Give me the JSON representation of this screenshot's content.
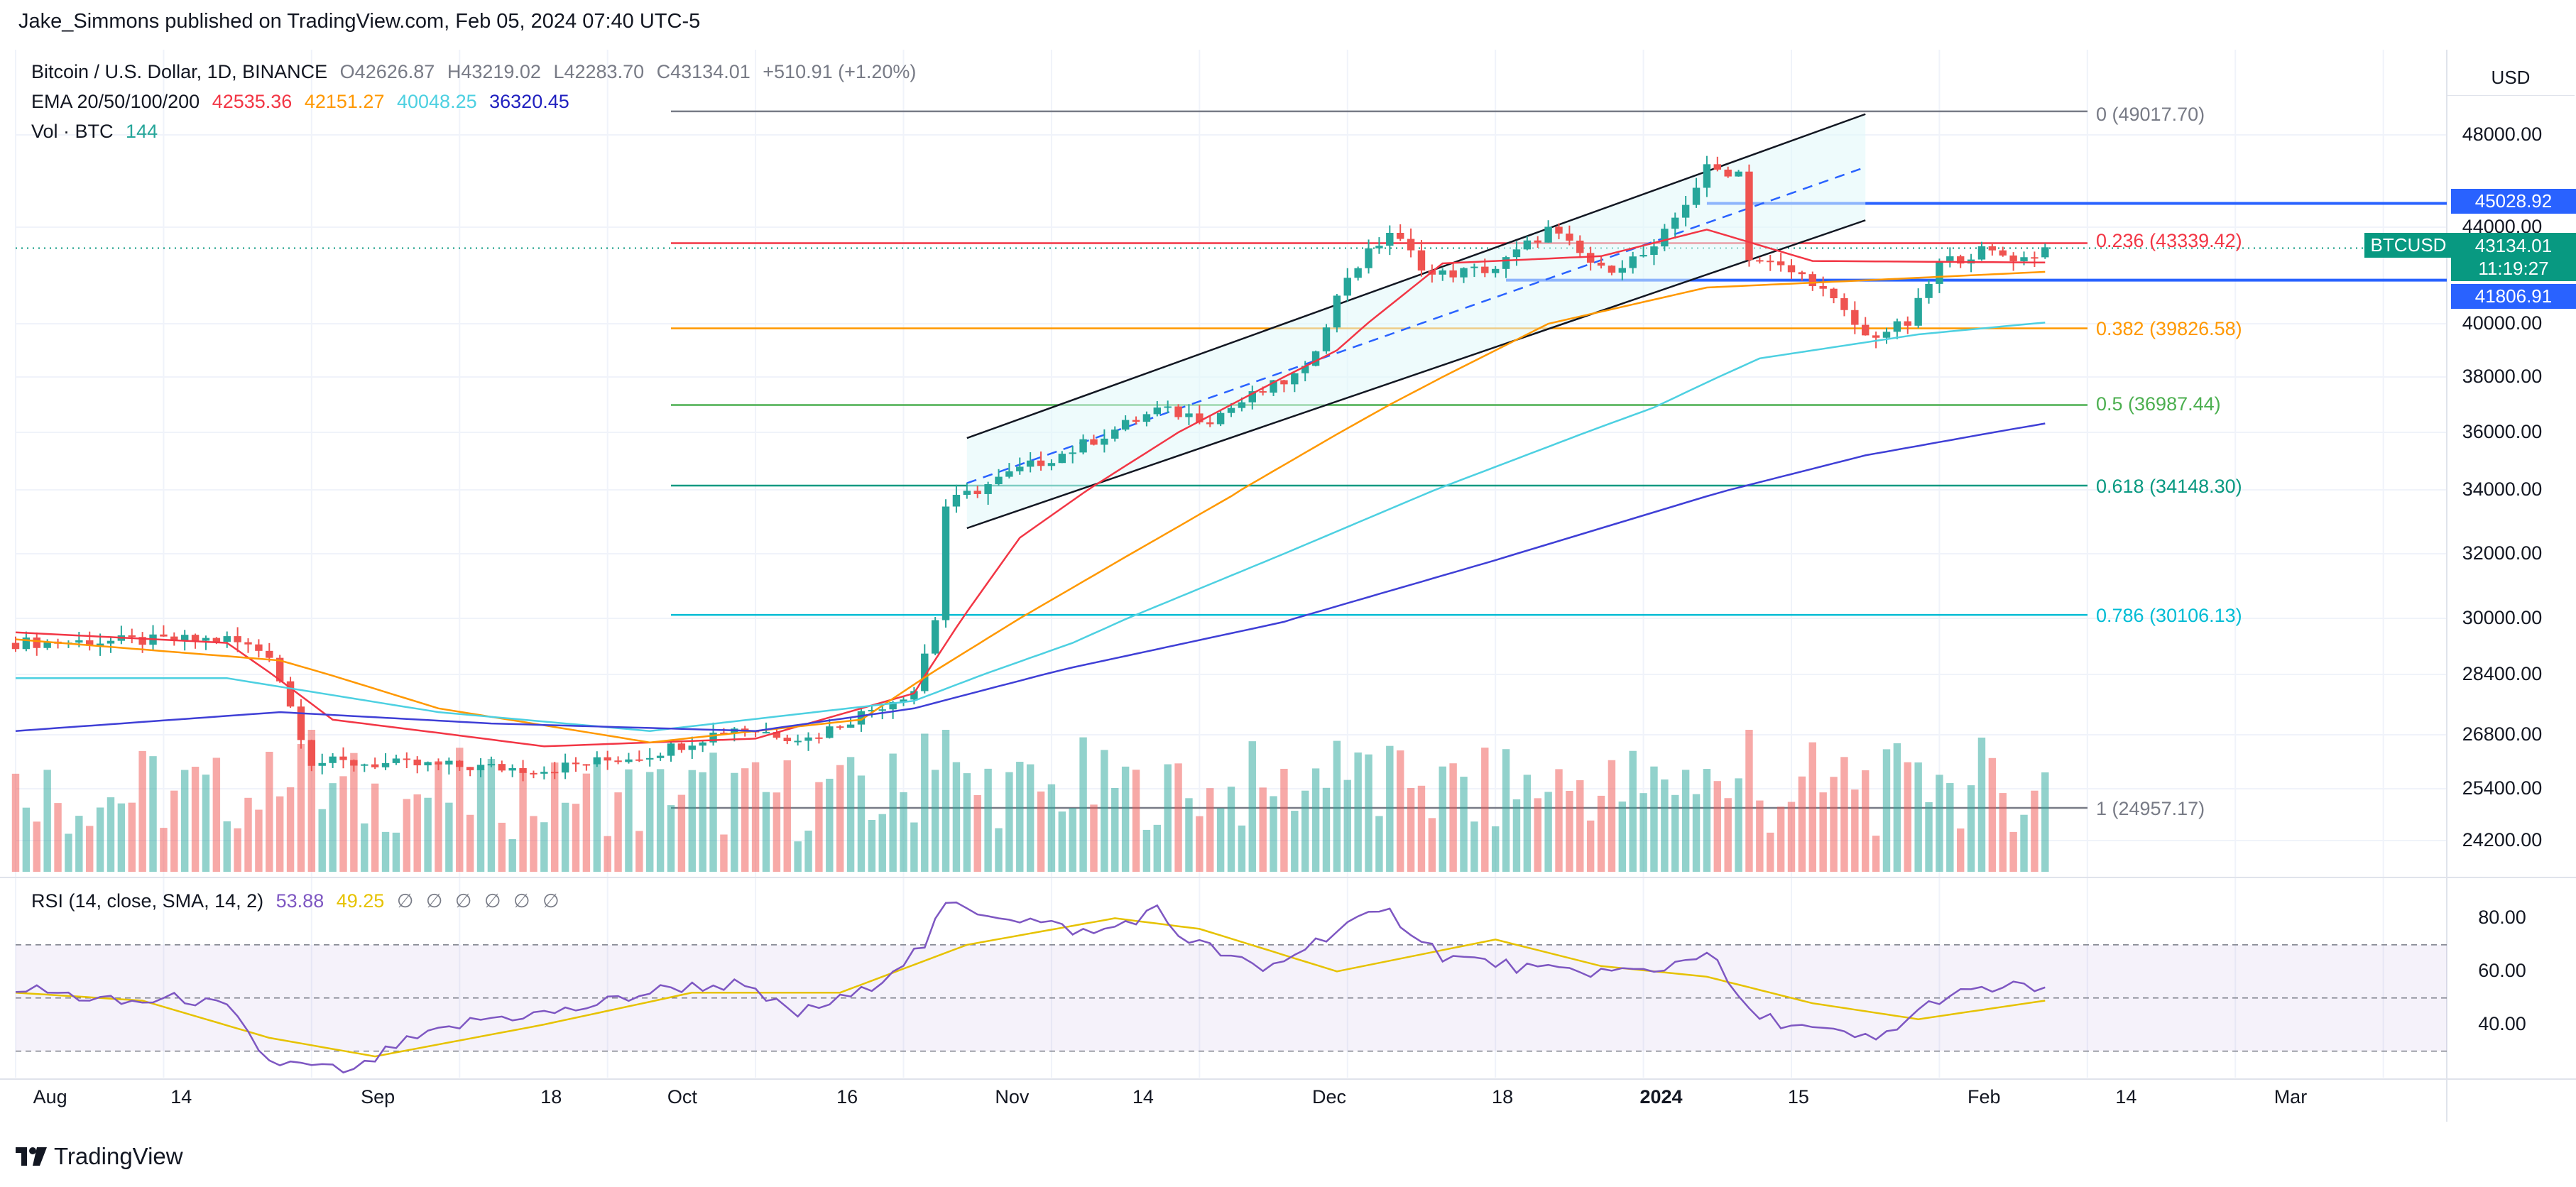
{
  "header": {
    "author_line": "Jake_Simmons published on TradingView.com, Feb 05, 2024 07:40 UTC-5"
  },
  "legend": {
    "symbol": "Bitcoin / U.S. Dollar, 1D, BINANCE",
    "o_label": "O",
    "o": "42626.87",
    "h_label": "H",
    "h": "43219.02",
    "l_label": "L",
    "l": "42283.70",
    "c_label": "C",
    "c": "43134.01",
    "change": "+510.91 (+1.20%)",
    "ema_label": "EMA 20/50/100/200",
    "ema20": "42535.36",
    "ema50": "42151.27",
    "ema100": "40048.25",
    "ema200": "36320.45",
    "vol_label": "Vol · BTC",
    "vol": "144",
    "rsi_label": "RSI (14, close, SMA, 14, 2)",
    "rsi": "53.88",
    "rsi_sma": "49.25",
    "rsi_empty": [
      "∅",
      "∅",
      "∅",
      "∅",
      "∅",
      "∅"
    ]
  },
  "currency": "USD",
  "price_scale": [
    "48000.00",
    "44000.00",
    "40000.00",
    "38000.00",
    "36000.00",
    "34000.00",
    "32000.00",
    "30000.00",
    "28400.00",
    "26800.00",
    "25400.00",
    "24200.00"
  ],
  "rsi_scale": [
    "80.00",
    "60.00",
    "40.00"
  ],
  "badges": {
    "resistance": "45028.92",
    "support": "41806.91",
    "symbol": "BTCUSD",
    "last_price": "43134.01",
    "countdown": "11:19:27"
  },
  "fib_levels": [
    {
      "label": "0 (49017.70)",
      "color": "#787b86"
    },
    {
      "label": "0.236 (43339.42)",
      "color": "#f23645"
    },
    {
      "label": "0.382 (39826.58)",
      "color": "#ff9800"
    },
    {
      "label": "0.5 (36987.44)",
      "color": "#4caf50"
    },
    {
      "label": "0.618 (34148.30)",
      "color": "#089981"
    },
    {
      "label": "0.786 (30106.13)",
      "color": "#00bcd4"
    },
    {
      "label": "1 (24957.17)",
      "color": "#787b86"
    }
  ],
  "time_axis": [
    "Aug",
    "14",
    "Sep",
    "18",
    "Oct",
    "16",
    "Nov",
    "14",
    "Dec",
    "18",
    "2024",
    "15",
    "Feb",
    "14",
    "Mar"
  ],
  "brand": "TradingView",
  "colors": {
    "up": "#26a69a",
    "down": "#ef5350",
    "ema20": "#f23645",
    "ema50": "#ff9800",
    "ema100": "#4dd0e1",
    "ema200": "#3f3fd6",
    "blue_line": "#2962ff"
  },
  "chart_data": {
    "type": "candlestick",
    "title": "Bitcoin / U.S. Dollar, 1D, BINANCE",
    "ylabel": "USD",
    "ylim": [
      23400,
      49600
    ],
    "x_range_days": [
      0,
      230
    ],
    "price_anchors": [
      {
        "day": 0,
        "price": 29300
      },
      {
        "day": 20,
        "price": 29400
      },
      {
        "day": 24,
        "price": 29000
      },
      {
        "day": 28,
        "price": 26100
      },
      {
        "day": 40,
        "price": 26000
      },
      {
        "day": 50,
        "price": 25900
      },
      {
        "day": 60,
        "price": 26300
      },
      {
        "day": 68,
        "price": 27000
      },
      {
        "day": 75,
        "price": 26700
      },
      {
        "day": 85,
        "price": 28000
      },
      {
        "day": 87,
        "price": 30000
      },
      {
        "day": 88,
        "price": 33500
      },
      {
        "day": 95,
        "price": 34700
      },
      {
        "day": 100,
        "price": 35400
      },
      {
        "day": 108,
        "price": 36800
      },
      {
        "day": 113,
        "price": 36500
      },
      {
        "day": 117,
        "price": 37300
      },
      {
        "day": 122,
        "price": 38200
      },
      {
        "day": 126,
        "price": 42000
      },
      {
        "day": 130,
        "price": 43800
      },
      {
        "day": 134,
        "price": 42000
      },
      {
        "day": 140,
        "price": 42300
      },
      {
        "day": 145,
        "price": 43900
      },
      {
        "day": 150,
        "price": 42200
      },
      {
        "day": 155,
        "price": 43000
      },
      {
        "day": 160,
        "price": 46500
      },
      {
        "day": 163,
        "price": 46400
      },
      {
        "day": 164,
        "price": 42800
      },
      {
        "day": 170,
        "price": 41800
      },
      {
        "day": 175,
        "price": 39500
      },
      {
        "day": 179,
        "price": 40000
      },
      {
        "day": 182,
        "price": 42500
      },
      {
        "day": 186,
        "price": 43000
      },
      {
        "day": 190,
        "price": 42700
      },
      {
        "day": 192,
        "price": 43134
      }
    ],
    "ema_series": [
      {
        "name": "EMA 20",
        "last": 42535.36,
        "points": [
          [
            0,
            29600
          ],
          [
            20,
            29300
          ],
          [
            30,
            27200
          ],
          [
            50,
            26500
          ],
          [
            70,
            26700
          ],
          [
            85,
            27900
          ],
          [
            95,
            32500
          ],
          [
            110,
            36000
          ],
          [
            125,
            39000
          ],
          [
            135,
            42500
          ],
          [
            150,
            42800
          ],
          [
            160,
            43900
          ],
          [
            170,
            42600
          ],
          [
            192,
            42535
          ]
        ]
      },
      {
        "name": "EMA 50",
        "last": 42151.27,
        "points": [
          [
            0,
            29400
          ],
          [
            25,
            28800
          ],
          [
            40,
            27500
          ],
          [
            60,
            26600
          ],
          [
            80,
            27200
          ],
          [
            95,
            30000
          ],
          [
            115,
            33800
          ],
          [
            130,
            37000
          ],
          [
            145,
            40000
          ],
          [
            160,
            41500
          ],
          [
            175,
            41800
          ],
          [
            192,
            42151
          ]
        ]
      },
      {
        "name": "EMA 100",
        "last": 40048.25,
        "points": [
          [
            0,
            28300
          ],
          [
            20,
            28300
          ],
          [
            40,
            27400
          ],
          [
            60,
            26900
          ],
          [
            85,
            27700
          ],
          [
            100,
            29300
          ],
          [
            120,
            32000
          ],
          [
            140,
            34800
          ],
          [
            155,
            36900
          ],
          [
            165,
            38700
          ],
          [
            180,
            39600
          ],
          [
            192,
            40048
          ]
        ]
      },
      {
        "name": "EMA 200",
        "last": 36320.45,
        "points": [
          [
            0,
            26900
          ],
          [
            25,
            27400
          ],
          [
            45,
            27100
          ],
          [
            70,
            26900
          ],
          [
            85,
            27500
          ],
          [
            100,
            28600
          ],
          [
            120,
            29900
          ],
          [
            140,
            31800
          ],
          [
            160,
            33800
          ],
          [
            175,
            35200
          ],
          [
            192,
            36320
          ]
        ]
      }
    ],
    "rsi": {
      "ylim": [
        20,
        90
      ],
      "last": 53.88,
      "sma_last": 49.25,
      "bands": [
        70,
        50,
        30
      ],
      "points": [
        [
          0,
          54
        ],
        [
          10,
          48
        ],
        [
          16,
          50
        ],
        [
          20,
          46
        ],
        [
          24,
          26
        ],
        [
          32,
          22
        ],
        [
          36,
          32
        ],
        [
          44,
          42
        ],
        [
          52,
          45
        ],
        [
          62,
          54
        ],
        [
          68,
          55
        ],
        [
          74,
          44
        ],
        [
          80,
          52
        ],
        [
          86,
          70
        ],
        [
          88,
          85
        ],
        [
          95,
          80
        ],
        [
          102,
          74
        ],
        [
          108,
          83
        ],
        [
          110,
          74
        ],
        [
          118,
          60
        ],
        [
          126,
          78
        ],
        [
          130,
          82
        ],
        [
          135,
          66
        ],
        [
          145,
          60
        ],
        [
          155,
          60
        ],
        [
          160,
          68
        ],
        [
          164,
          44
        ],
        [
          170,
          38
        ],
        [
          176,
          34
        ],
        [
          182,
          50
        ],
        [
          188,
          54
        ],
        [
          192,
          54
        ]
      ],
      "sma_points": [
        [
          0,
          52
        ],
        [
          12,
          49
        ],
        [
          24,
          35
        ],
        [
          34,
          28
        ],
        [
          50,
          40
        ],
        [
          64,
          52
        ],
        [
          78,
          52
        ],
        [
          90,
          70
        ],
        [
          104,
          80
        ],
        [
          112,
          76
        ],
        [
          125,
          60
        ],
        [
          140,
          72
        ],
        [
          150,
          62
        ],
        [
          160,
          58
        ],
        [
          170,
          48
        ],
        [
          180,
          42
        ],
        [
          192,
          49
        ]
      ]
    },
    "fib_values": [
      49017.7,
      43339.42,
      39826.58,
      36987.44,
      34148.3,
      30106.13,
      24957.17
    ],
    "horizontal_levels": [
      45028.92,
      41806.91
    ],
    "time_ticks": [
      {
        "day": 3,
        "label": "Aug"
      },
      {
        "day": 16,
        "label": "14"
      },
      {
        "day": 34,
        "label": "Sep"
      },
      {
        "day": 51,
        "label": "18"
      },
      {
        "day": 63,
        "label": "Oct"
      },
      {
        "day": 79,
        "label": "16"
      },
      {
        "day": 94,
        "label": "Nov"
      },
      {
        "day": 107,
        "label": "14"
      },
      {
        "day": 124,
        "label": "Dec"
      },
      {
        "day": 141,
        "label": "18"
      },
      {
        "day": 155,
        "label": "2024"
      },
      {
        "day": 169,
        "label": "15"
      },
      {
        "day": 186,
        "label": "Feb"
      },
      {
        "day": 200,
        "label": "14"
      },
      {
        "day": 215,
        "label": "Mar"
      }
    ]
  }
}
